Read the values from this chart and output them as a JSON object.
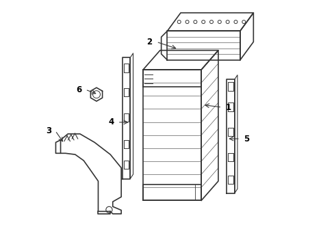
{
  "background_color": "#ffffff",
  "line_color": "#333333",
  "line_width": 1.2,
  "label_color": "#000000",
  "label_fontsize": 8.5
}
